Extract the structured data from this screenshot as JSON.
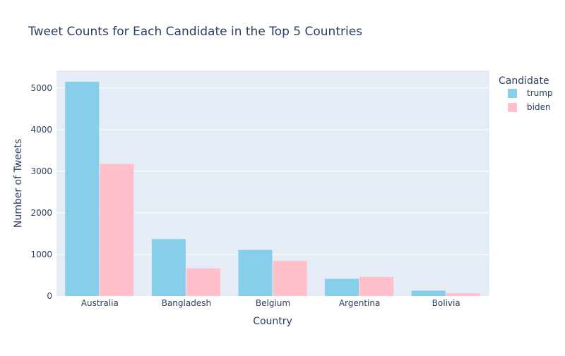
{
  "chart_data": {
    "type": "bar",
    "title": "Tweet Counts for Each Candidate in the Top 5 Countries",
    "xlabel": "Country",
    "ylabel": "Number of Tweets",
    "categories": [
      "Australia",
      "Bangladesh",
      "Belgium",
      "Argentina",
      "Bolivia"
    ],
    "series": [
      {
        "name": "trump",
        "values": [
          5150,
          1370,
          1110,
          415,
          130
        ],
        "color": "#87ceeb"
      },
      {
        "name": "biden",
        "values": [
          3175,
          665,
          845,
          460,
          65
        ],
        "color": "#ffc0cb"
      }
    ],
    "ylim": [
      0,
      5420
    ],
    "yticks": [
      0,
      1000,
      2000,
      3000,
      4000,
      5000
    ],
    "ytick_labels": [
      "0",
      "1000",
      "2000",
      "3000",
      "4000",
      "5000"
    ],
    "legend_title": "Candidate",
    "legend_position": "top-right",
    "grid": true,
    "plot_background": "#e5ecf6"
  }
}
